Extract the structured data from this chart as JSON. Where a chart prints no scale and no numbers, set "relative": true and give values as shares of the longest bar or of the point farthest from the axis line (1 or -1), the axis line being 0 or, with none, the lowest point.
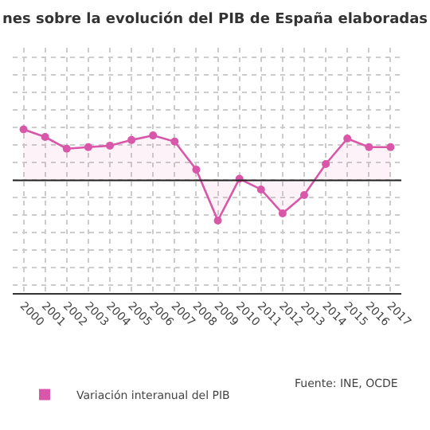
{
  "chart_data": {
    "type": "area",
    "title": "nes sobre la evolución del PIB de España elaboradas",
    "categories": [
      "2000",
      "2001",
      "2002",
      "2003",
      "2004",
      "2005",
      "2006",
      "2007",
      "2008",
      "2009",
      "2010",
      "2011",
      "2012",
      "2013",
      "2014",
      "2015",
      "2016",
      "2017"
    ],
    "relative": true,
    "series": [
      {
        "name": "Variación interanual del PIB",
        "color": "#d957a8",
        "values": [
          1,
          0.85,
          0.62,
          0.65,
          0.68,
          0.79,
          0.88,
          0.76,
          0.21,
          -0.79,
          0.03,
          -0.18,
          -0.65,
          -0.29,
          0.32,
          0.82,
          0.65,
          0.65
        ]
      }
    ],
    "ref_lines": [
      {
        "axis": "y",
        "value": 0,
        "color": "#222222"
      }
    ],
    "annotations": [
      "Fuente: INE, OCDE"
    ],
    "grid": true,
    "legend": "bottom",
    "marker": "circle",
    "line_style": "solid"
  }
}
